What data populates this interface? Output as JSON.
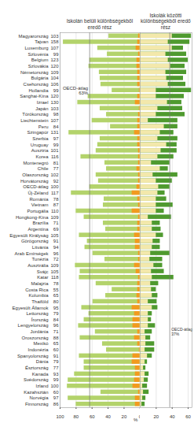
{
  "chart_data": [
    {
      "type": "bar",
      "orientation": "horizontal",
      "stacked": true,
      "grid": true,
      "tick_labels": true,
      "title": "Iskolán belüli különbségekből eredő rész",
      "xlabel": "%",
      "categories": [
        "Magyarország",
        "Tajvan",
        "Luxemburg",
        "Szlovénia",
        "Belgium",
        "Szlovákia",
        "Németország",
        "Bulgária",
        "Csehország",
        "Hollandia",
        "Sanghai-Kína",
        "Izrael",
        "Japán",
        "Törökország",
        "Liechtenstein",
        "Peru",
        "Szingapúr",
        "Szerbia",
        "Uruguay",
        "Ausztria",
        "Korea",
        "Montenegró",
        "Chile",
        "Olaszország",
        "Horvátország",
        "OECD-átlag",
        "Új-Zéland",
        "Románia",
        "Vietnam",
        "Portugália",
        "Hongkong-Kína",
        "Brazília",
        "Argentína",
        "Egyesült Királyság",
        "Görögország",
        "Litvánia",
        "Arab Emírségek",
        "Tunézia",
        "Ausztrália",
        "Svájc",
        "Katar",
        "Malajzia",
        "Costa Rica",
        "Kolumbia",
        "Thaiföld",
        "Egyesült Államok",
        "Lettország",
        "Írország",
        "Lengyelország",
        "Jordánia",
        "Oroszország",
        "Mexikó",
        "Indonézia",
        "Spanyolország",
        "Dánia",
        "Észtország",
        "Kanada",
        "Svédország",
        "Izland",
        "Kazahsztán",
        "Norvégia",
        "Finnország"
      ],
      "row_values": [
        103,
        158,
        107,
        99,
        123,
        120,
        109,
        104,
        106,
        99,
        120,
        130,
        103,
        98,
        107,
        84,
        131,
        97,
        99,
        101,
        116,
        81,
        77,
        102,
        92,
        100,
        117,
        78,
        87,
        110,
        109,
        71,
        69,
        105,
        91,
        94,
        96,
        72,
        109,
        105,
        118,
        78,
        55,
        65,
        80,
        95,
        79,
        84,
        96,
        71,
        88,
        65,
        60,
        91,
        79,
        77,
        93,
        99,
        100,
        60,
        97,
        86
      ],
      "values": [
        39,
        96,
        53,
        41,
        63,
        64,
        51,
        50,
        49,
        35,
        65,
        78,
        50,
        42,
        60,
        37,
        89,
        50,
        53,
        55,
        74,
        44,
        42,
        55,
        52,
        63,
        86,
        45,
        46,
        80,
        70,
        46,
        43,
        76,
        66,
        69,
        59,
        44,
        81,
        75,
        76,
        55,
        35,
        43,
        59,
        73,
        64,
        70,
        77,
        56,
        75,
        47,
        42,
        76,
        70,
        70,
        82,
        90,
        91,
        49,
        90,
        80
      ],
      "explained_values": [
        2,
        3,
        5,
        2,
        4,
        4,
        3,
        3,
        3,
        1,
        3,
        6,
        1,
        2,
        3,
        3,
        7,
        3,
        3,
        2,
        2,
        2,
        4,
        2,
        2,
        4,
        10,
        3,
        2,
        10,
        2,
        3,
        3,
        7,
        6,
        6,
        2,
        2,
        7,
        5,
        2,
        3,
        3,
        4,
        3,
        10,
        7,
        9,
        9,
        3,
        7,
        3,
        1,
        9,
        10,
        6,
        6,
        7,
        9,
        2,
        6,
        6
      ],
      "color": "#b3d36b",
      "xlim": [
        0,
        100
      ],
      "xticks": [
        100,
        80,
        60,
        40,
        20,
        0
      ],
      "annotations": [
        {
          "text": "OECD-átlag\n63%",
          "value": 63
        }
      ]
    },
    {
      "type": "bar",
      "orientation": "horizontal",
      "stacked": true,
      "grid": true,
      "tick_labels": "x",
      "title": "Iskolák közötti különbségekből eredő rész",
      "categories": [
        "Magyarország",
        "Tajvan",
        "Luxemburg",
        "Szlovénia",
        "Belgium",
        "Szlovákia",
        "Németország",
        "Bulgária",
        "Csehország",
        "Hollandia",
        "Sanghai-Kína",
        "Izrael",
        "Japán",
        "Törökország",
        "Liechtenstein",
        "Peru",
        "Szingapúr",
        "Szerbia",
        "Uruguay",
        "Ausztria",
        "Korea",
        "Montenegró",
        "Chile",
        "Olaszország",
        "Horvátország",
        "OECD-átlag",
        "Új-Zéland",
        "Románia",
        "Vietnam",
        "Portugália",
        "Hongkong-Kína",
        "Brazília",
        "Argentína",
        "Egyesült Királyság",
        "Görögország",
        "Litvánia",
        "Arab Emírségek",
        "Tunézia",
        "Ausztrália",
        "Svájc",
        "Katar",
        "Malajzia",
        "Costa Rica",
        "Kolumbia",
        "Thaiföld",
        "Egyesült Államok",
        "Lettország",
        "Írország",
        "Lengyelország",
        "Jordánia",
        "Oroszország",
        "Mexikó",
        "Indonézia",
        "Spanyolország",
        "Dánia",
        "Észtország",
        "Kanada",
        "Svédország",
        "Izland",
        "Kazahsztán",
        "Norvégia",
        "Finnország"
      ],
      "values": [
        64,
        62,
        54,
        58,
        60,
        56,
        58,
        54,
        57,
        64,
        55,
        52,
        53,
        56,
        47,
        47,
        42,
        47,
        46,
        46,
        42,
        37,
        35,
        47,
        40,
        37,
        31,
        33,
        41,
        30,
        39,
        25,
        26,
        29,
        25,
        25,
        37,
        28,
        28,
        30,
        42,
        23,
        20,
        22,
        21,
        22,
        15,
        14,
        19,
        15,
        13,
        18,
        18,
        15,
        9,
        7,
        11,
        10,
        9,
        11,
        7,
        6
      ],
      "explained_values": [
        40,
        35,
        40,
        32,
        35,
        38,
        32,
        33,
        35,
        20,
        20,
        34,
        22,
        20,
        10,
        30,
        25,
        22,
        33,
        26,
        22,
        14,
        25,
        16,
        20,
        23,
        22,
        20,
        20,
        20,
        10,
        15,
        15,
        20,
        16,
        15,
        13,
        12,
        17,
        14,
        15,
        13,
        14,
        15,
        10,
        15,
        10,
        10,
        10,
        6,
        7,
        7,
        6,
        9,
        6,
        4,
        6,
        5,
        3,
        4,
        3,
        2
      ],
      "color": "#4f9a2f",
      "xlim": [
        0,
        65
      ],
      "xticks": [
        20,
        40,
        60
      ],
      "annotations": [
        {
          "text": "OECD-átlag\n37%",
          "value": 37
        }
      ]
    }
  ]
}
